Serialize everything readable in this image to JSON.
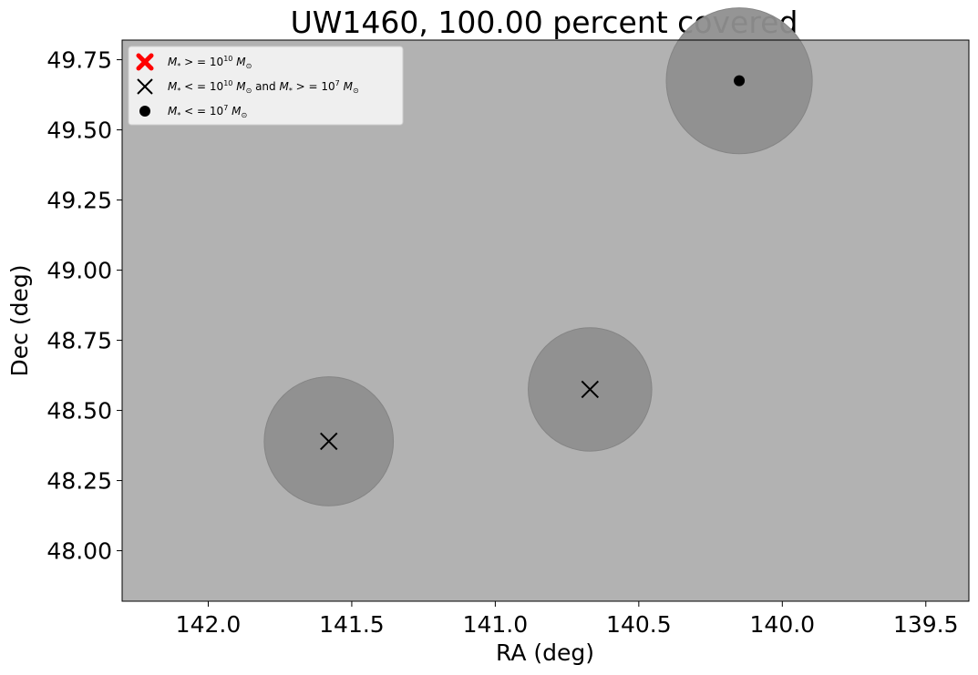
{
  "chart_data": {
    "type": "scatter",
    "title": "UW1460, 100.00 percent covered",
    "xlabel": "RA (deg)",
    "ylabel": "Dec (deg)",
    "xlim": [
      142.3,
      139.35
    ],
    "ylim": [
      47.82,
      49.82
    ],
    "x_inverted": true,
    "x_ticks": [
      142.0,
      141.5,
      141.0,
      140.5,
      140.0,
      139.5
    ],
    "x_tick_labels": [
      "142.0",
      "141.5",
      "141.0",
      "140.5",
      "140.0",
      "139.5"
    ],
    "y_ticks": [
      48.0,
      48.25,
      48.5,
      48.75,
      49.0,
      49.25,
      49.5,
      49.75
    ],
    "y_tick_labels": [
      "48.00",
      "48.25",
      "48.50",
      "48.75",
      "49.00",
      "49.25",
      "49.50",
      "49.75"
    ],
    "grid": false,
    "background_color": "#b2b2b2",
    "coverage_circle_color": "#8f8f8f",
    "legend_position": "upper-left",
    "legend": [
      {
        "marker": "thick-x",
        "color": "#ff0000",
        "label": "M_* >= 10^10 M_sun"
      },
      {
        "marker": "x",
        "color": "#000000",
        "label": "M_* <= 10^10 M_sun and M_* >= 10^7 M_sun"
      },
      {
        "marker": "dot",
        "color": "#000000",
        "label": "M_* <= 10^7 M_sun"
      }
    ],
    "series": [
      {
        "marker": "x",
        "points": [
          {
            "ra": 141.58,
            "dec": 48.39,
            "coverage_radius_deg": 0.23
          },
          {
            "ra": 140.67,
            "dec": 48.575,
            "coverage_radius_deg": 0.22
          }
        ]
      },
      {
        "marker": "dot",
        "points": [
          {
            "ra": 140.15,
            "dec": 49.675,
            "coverage_radius_deg": 0.26
          }
        ]
      }
    ]
  }
}
